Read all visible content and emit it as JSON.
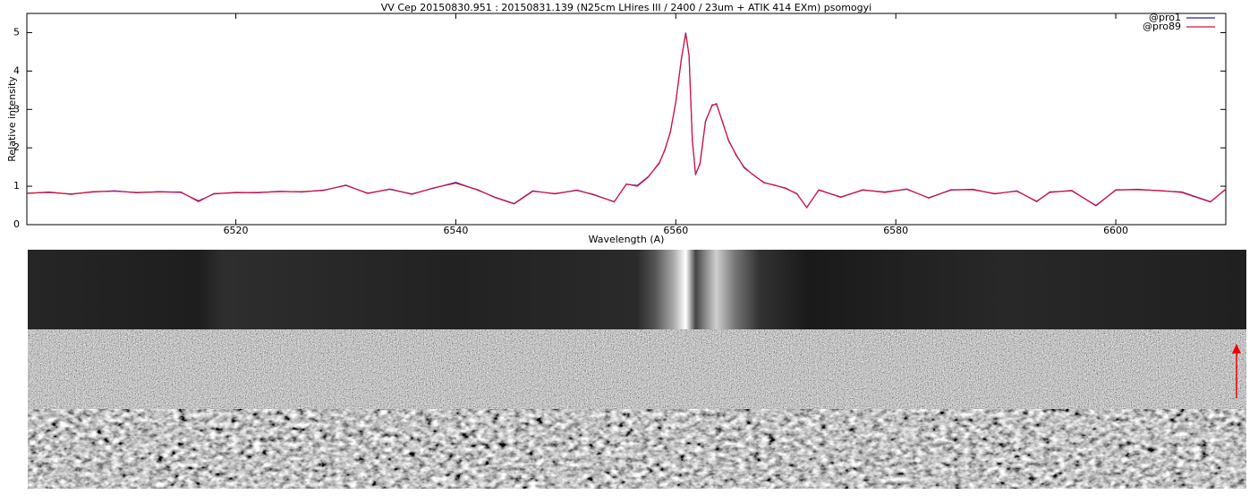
{
  "chart_data": {
    "type": "line",
    "title": "VV Cep 20150830.951 : 20150831.139  (N25cm LHires III / 2400 / 23um + ATIK 414 EXm) psomogyi",
    "x_label": "Wavelength (A)",
    "y_label": "Relative intensity",
    "x": [
      6501,
      6503,
      6505,
      6507,
      6509,
      6511,
      6513,
      6515,
      6516.6,
      6518,
      6520,
      6522,
      6524,
      6526,
      6528,
      6530,
      6532,
      6534,
      6536,
      6538,
      6540,
      6542,
      6543.5,
      6545.3,
      6547,
      6549,
      6551,
      6552.5,
      6554.4,
      6555.5,
      6556.5,
      6557.5,
      6558.5,
      6559,
      6559.5,
      6560,
      6560.5,
      6560.9,
      6561.2,
      6561.5,
      6561.8,
      6562.2,
      6562.7,
      6563.3,
      6563.7,
      6564.2,
      6564.8,
      6565.5,
      6566.2,
      6567,
      6568,
      6569,
      6570,
      6571,
      6571.9,
      6573,
      6575,
      6577,
      6579,
      6581,
      6583,
      6585,
      6587,
      6589,
      6591,
      6592.8,
      6594,
      6596,
      6598.2,
      6600,
      6602,
      6604,
      6606,
      6608.6,
      6610
    ],
    "series": [
      {
        "name": "@pro1",
        "color": "#2020c0",
        "values": [
          0.82,
          0.84,
          0.8,
          0.85,
          0.88,
          0.83,
          0.86,
          0.84,
          0.62,
          0.8,
          0.84,
          0.83,
          0.87,
          0.85,
          0.9,
          1.02,
          0.82,
          0.92,
          0.8,
          0.95,
          1.1,
          0.9,
          0.72,
          0.55,
          0.88,
          0.8,
          0.9,
          0.78,
          0.6,
          1.05,
          1.02,
          1.25,
          1.6,
          1.95,
          2.4,
          3.2,
          4.3,
          5.0,
          4.4,
          2.2,
          1.3,
          1.6,
          2.7,
          3.1,
          3.15,
          2.7,
          2.2,
          1.8,
          1.5,
          1.3,
          1.1,
          1.02,
          0.95,
          0.8,
          0.45,
          0.9,
          0.72,
          0.9,
          0.85,
          0.92,
          0.7,
          0.9,
          0.92,
          0.8,
          0.88,
          0.6,
          0.85,
          0.88,
          0.5,
          0.9,
          0.92,
          0.88,
          0.85,
          0.6,
          0.92
        ]
      },
      {
        "name": "@pro89",
        "color": "#e0103a",
        "values": [
          0.81,
          0.85,
          0.79,
          0.86,
          0.87,
          0.84,
          0.85,
          0.85,
          0.6,
          0.81,
          0.83,
          0.84,
          0.86,
          0.86,
          0.89,
          1.03,
          0.81,
          0.93,
          0.79,
          0.96,
          1.08,
          0.91,
          0.71,
          0.54,
          0.87,
          0.81,
          0.89,
          0.79,
          0.59,
          1.06,
          1.0,
          1.24,
          1.62,
          1.93,
          2.42,
          3.18,
          4.32,
          4.97,
          4.42,
          2.18,
          1.32,
          1.58,
          2.68,
          3.12,
          3.13,
          2.72,
          2.18,
          1.82,
          1.48,
          1.31,
          1.09,
          1.03,
          0.94,
          0.81,
          0.44,
          0.91,
          0.71,
          0.91,
          0.84,
          0.93,
          0.69,
          0.91,
          0.91,
          0.81,
          0.87,
          0.61,
          0.84,
          0.89,
          0.49,
          0.91,
          0.91,
          0.89,
          0.84,
          0.59,
          0.93
        ]
      }
    ],
    "xlim": [
      6501,
      6610
    ],
    "xticks": [
      6520,
      6540,
      6560,
      6580,
      6600
    ],
    "ylim": [
      0,
      5.5
    ],
    "yticks": [
      0,
      1,
      2,
      3,
      4,
      5
    ],
    "grid": false,
    "legend": "top-right"
  }
}
